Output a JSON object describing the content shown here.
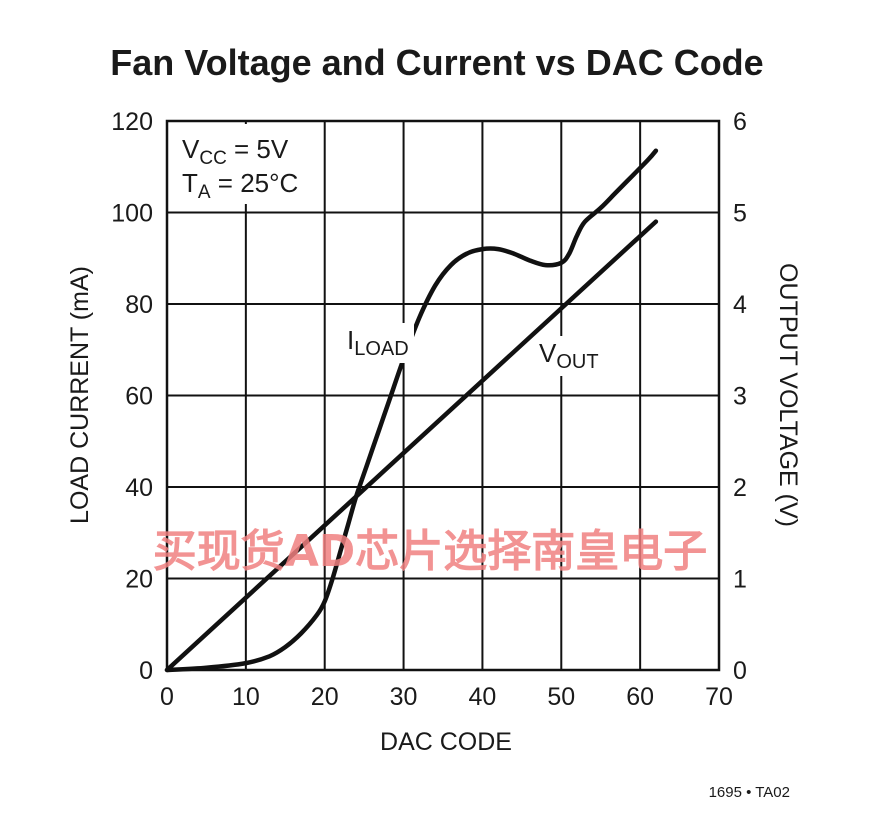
{
  "chart_data": {
    "type": "line",
    "title": "Fan Voltage and Current  vs DAC Code",
    "xlabel": "DAC CODE",
    "ylabel_left": "LOAD CURRENT (mA)",
    "ylabel_right": "OUTPUT VOLTAGE (V)",
    "xlim": [
      0,
      70
    ],
    "ylim_left": [
      0,
      120
    ],
    "ylim_right": [
      0,
      6
    ],
    "xticks": [
      "0",
      "10",
      "20",
      "30",
      "40",
      "50",
      "60",
      "70"
    ],
    "yticks_left": [
      "0",
      "20",
      "40",
      "60",
      "80",
      "100",
      "120"
    ],
    "yticks_right": [
      "0",
      "1",
      "2",
      "3",
      "4",
      "5",
      "6"
    ],
    "grid": true,
    "conditions": {
      "vcc": {
        "main": "V",
        "sub": "CC",
        "rest": " = 5V"
      },
      "ta": {
        "main": "T",
        "sub": "A",
        "rest": " = 25°C"
      }
    },
    "series": [
      {
        "name": "ILOAD",
        "label_main": "I",
        "label_sub": "LOAD",
        "axis": "left",
        "x": [
          0,
          5,
          10,
          13,
          15,
          17,
          19,
          20,
          21,
          22,
          23,
          24,
          25,
          26,
          28,
          30,
          32,
          34,
          36,
          38,
          40,
          42,
          44,
          46,
          48,
          50,
          51,
          52,
          53,
          55,
          57,
          59,
          61,
          62
        ],
        "y": [
          0,
          0.5,
          1.5,
          3,
          5,
          8,
          12,
          15,
          20,
          26,
          32,
          38,
          43,
          48,
          58,
          68,
          77,
          84,
          88.5,
          91,
          92,
          92,
          91,
          89.5,
          88.5,
          89,
          91,
          95,
          98,
          101,
          104.5,
          108,
          111.5,
          113.5
        ]
      },
      {
        "name": "VOUT",
        "label_main": "V",
        "label_sub": "OUT",
        "axis": "right",
        "x": [
          0,
          62
        ],
        "y": [
          0,
          4.9
        ]
      }
    ]
  },
  "figure_id": "1695 • TA02",
  "watermark": "买现货AD芯片选择南皇电子"
}
